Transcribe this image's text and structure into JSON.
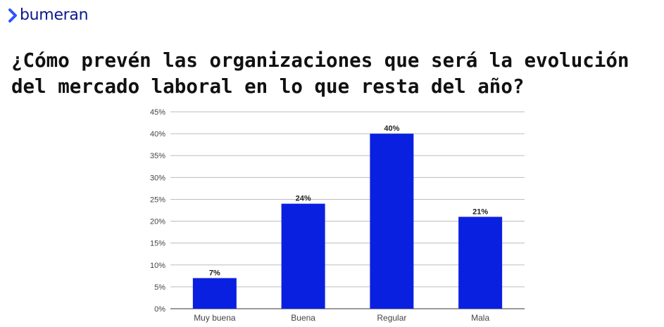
{
  "brand": {
    "name": "bumeran",
    "accent_color": "#2f54ff",
    "text_color": "#0a1a8c"
  },
  "headline": {
    "line1": "¿Cómo prevén las organizaciones que será la evolución",
    "line2": "del mercado laboral en lo que resta del año?"
  },
  "chart_data": {
    "type": "bar",
    "categories": [
      "Muy buena",
      "Buena",
      "Regular",
      "Mala"
    ],
    "values": [
      7,
      24,
      40,
      21
    ],
    "data_labels": [
      "7%",
      "24%",
      "40%",
      "21%"
    ],
    "ylim": [
      0,
      45
    ],
    "yticks": [
      0,
      5,
      10,
      15,
      20,
      25,
      30,
      35,
      40,
      45
    ],
    "ytick_labels": [
      "0%",
      "5%",
      "10%",
      "15%",
      "20%",
      "25%",
      "30%",
      "35%",
      "40%",
      "45%"
    ],
    "grid": true,
    "legend": "none",
    "bar_color": "#0a20e0",
    "title": "",
    "xlabel": "",
    "ylabel": ""
  }
}
